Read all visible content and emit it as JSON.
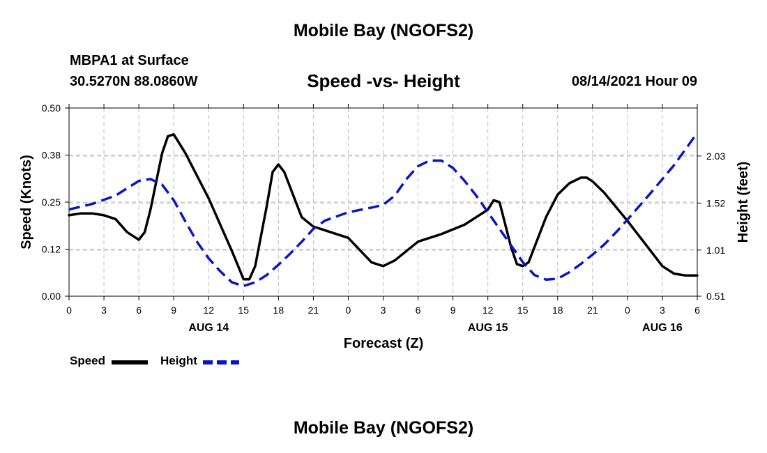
{
  "header": {
    "title_top": "Mobile Bay (NGOFS2)",
    "station": "MBPA1 at Surface",
    "coords": "30.5270N  88.0860W",
    "subtitle": "Speed -vs- Height",
    "datetime": "08/14/2021 Hour 09",
    "title_bottom": "Mobile Bay (NGOFS2)"
  },
  "legend": {
    "speed_label": "Speed",
    "height_label": "Height",
    "speed_color": "#000000",
    "height_color": "#0a14c8"
  },
  "chart_data": {
    "type": "line",
    "xlabel": "Forecast (Z)",
    "ylabel_left": "Speed (Knots)",
    "ylabel_right": "Height (feet)",
    "x_unit": "hours from 00Z Aug 14",
    "xlim": [
      0,
      54
    ],
    "ylim_left": [
      0.0,
      0.5
    ],
    "ylim_right": [
      0.51,
      2.55
    ],
    "grid": true,
    "legend_position": "bottom-left",
    "x_ticks": [
      {
        "x": 0,
        "label": "0"
      },
      {
        "x": 3,
        "label": "3"
      },
      {
        "x": 6,
        "label": "6"
      },
      {
        "x": 9,
        "label": "9"
      },
      {
        "x": 12,
        "label": "12"
      },
      {
        "x": 15,
        "label": "15"
      },
      {
        "x": 18,
        "label": "18"
      },
      {
        "x": 21,
        "label": "21"
      },
      {
        "x": 24,
        "label": "0"
      },
      {
        "x": 27,
        "label": "3"
      },
      {
        "x": 30,
        "label": "6"
      },
      {
        "x": 33,
        "label": "9"
      },
      {
        "x": 36,
        "label": "12"
      },
      {
        "x": 39,
        "label": "15"
      },
      {
        "x": 42,
        "label": "18"
      },
      {
        "x": 45,
        "label": "21"
      },
      {
        "x": 48,
        "label": "0"
      },
      {
        "x": 51,
        "label": "3"
      },
      {
        "x": 54,
        "label": "6"
      }
    ],
    "date_labels": [
      {
        "x": 12,
        "label": "AUG 14"
      },
      {
        "x": 36,
        "label": "AUG 15"
      },
      {
        "x": 51,
        "label": "AUG 16"
      }
    ],
    "y_ticks_left": [
      {
        "y": 0.0,
        "label": "0.00"
      },
      {
        "y": 0.125,
        "label": "0.12"
      },
      {
        "y": 0.25,
        "label": "0.25"
      },
      {
        "y": 0.375,
        "label": "0.38"
      },
      {
        "y": 0.5,
        "label": "0.50"
      }
    ],
    "y_ticks_right": [
      {
        "y": 0.51,
        "label": "0.51"
      },
      {
        "y": 1.01,
        "label": "1.01"
      },
      {
        "y": 1.52,
        "label": "1.52"
      },
      {
        "y": 2.03,
        "label": "2.03"
      }
    ],
    "series": [
      {
        "name": "Speed",
        "axis": "left",
        "color": "#000000",
        "dash": "solid",
        "x": [
          0,
          1,
          2,
          3,
          4,
          5,
          6,
          6.5,
          7,
          8,
          8.5,
          9,
          10,
          12,
          14,
          15,
          15.5,
          16,
          17,
          17.5,
          18,
          18.5,
          19,
          20,
          21,
          24,
          26,
          27,
          28,
          30,
          32,
          34,
          36,
          36.5,
          37,
          38,
          38.5,
          39,
          39.5,
          41,
          42,
          43,
          44,
          44.5,
          45,
          46,
          48,
          50,
          51,
          52,
          53,
          54
        ],
        "y": [
          0.215,
          0.22,
          0.22,
          0.215,
          0.205,
          0.17,
          0.15,
          0.17,
          0.23,
          0.38,
          0.425,
          0.43,
          0.38,
          0.26,
          0.12,
          0.045,
          0.045,
          0.08,
          0.24,
          0.33,
          0.35,
          0.33,
          0.29,
          0.21,
          0.185,
          0.155,
          0.09,
          0.08,
          0.095,
          0.145,
          0.165,
          0.19,
          0.23,
          0.255,
          0.25,
          0.13,
          0.085,
          0.08,
          0.09,
          0.21,
          0.27,
          0.3,
          0.315,
          0.315,
          0.305,
          0.275,
          0.2,
          0.12,
          0.08,
          0.06,
          0.055,
          0.055
        ]
      },
      {
        "name": "Height",
        "axis": "right",
        "color": "#0a14c8",
        "dash": "dashed",
        "x": [
          0,
          2,
          4,
          5,
          6,
          7,
          8,
          9,
          10,
          11,
          12,
          13,
          14,
          15,
          16,
          17,
          18,
          19,
          20,
          21,
          22,
          24,
          26,
          27,
          28,
          29,
          30,
          31,
          32,
          33,
          34,
          35,
          36,
          37,
          38,
          39,
          40,
          41,
          42,
          43,
          44,
          45,
          46,
          47,
          48,
          50,
          52,
          54
        ],
        "y": [
          1.45,
          1.51,
          1.6,
          1.68,
          1.76,
          1.78,
          1.72,
          1.55,
          1.32,
          1.1,
          0.92,
          0.78,
          0.66,
          0.62,
          0.66,
          0.74,
          0.85,
          0.97,
          1.1,
          1.24,
          1.33,
          1.42,
          1.47,
          1.5,
          1.6,
          1.78,
          1.92,
          1.98,
          1.98,
          1.9,
          1.76,
          1.6,
          1.42,
          1.24,
          1.06,
          0.88,
          0.74,
          0.69,
          0.7,
          0.77,
          0.86,
          0.96,
          1.07,
          1.2,
          1.34,
          1.63,
          1.93,
          2.28
        ]
      }
    ]
  }
}
